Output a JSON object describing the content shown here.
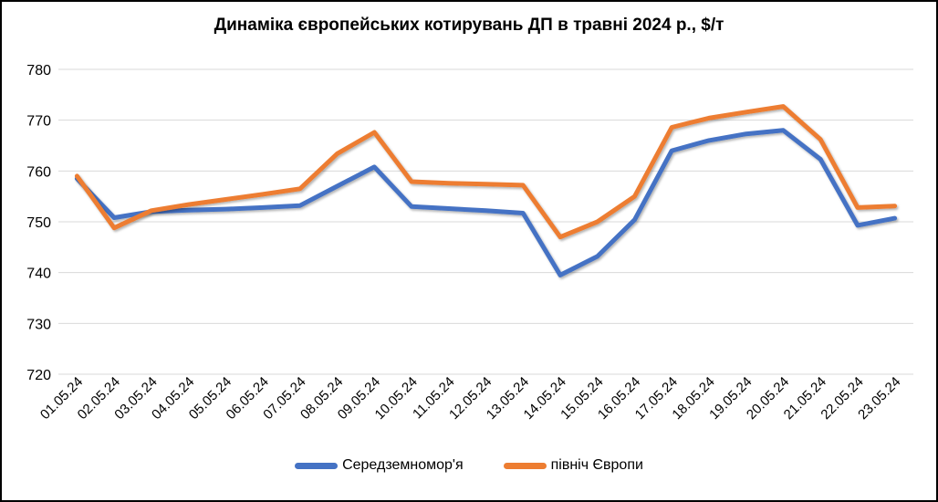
{
  "chart_data": {
    "type": "line",
    "title": "Динаміка європейських котирувань ДП в травні 2024 р., $/т",
    "categories": [
      "01.05.24",
      "02.05.24",
      "03.05.24",
      "04.05.24",
      "05.05.24",
      "06.05.24",
      "07.05.24",
      "08.05.24",
      "09.05.24",
      "10.05.24",
      "11.05.24",
      "12.05.24",
      "13.05.24",
      "14.05.24",
      "15.05.24",
      "16.05.24",
      "17.05.24",
      "18.05.24",
      "19.05.24",
      "20.05.24",
      "21.05.24",
      "22.05.24",
      "23.05.24"
    ],
    "series": [
      {
        "name": "Середземномор'я",
        "color": "#4472C4",
        "values": [
          758.5,
          750.8,
          752.0,
          752.3,
          752.5,
          752.8,
          753.2,
          757.0,
          760.8,
          753.0,
          752.6,
          752.2,
          751.7,
          739.5,
          743.2,
          750.4,
          764.0,
          766.0,
          767.3,
          768.0,
          762.3,
          749.3,
          750.7
        ]
      },
      {
        "name": "північ Європи",
        "color": "#ED7D31",
        "values": [
          759.0,
          748.8,
          752.2,
          753.4,
          754.4,
          755.4,
          756.5,
          763.4,
          767.6,
          757.9,
          757.6,
          757.4,
          757.2,
          747.0,
          750.0,
          755.0,
          768.6,
          770.4,
          771.6,
          772.7,
          766.2,
          752.8,
          753.1
        ]
      }
    ],
    "xlabel": "",
    "ylabel": "",
    "ylim": [
      720,
      780
    ],
    "y_ticks": [
      780,
      770,
      760,
      750,
      740,
      730,
      720
    ],
    "grid": "horizontal",
    "gridline_color": "#D9D9D9",
    "tick_label_color": "#000000",
    "legend_position": "bottom"
  }
}
